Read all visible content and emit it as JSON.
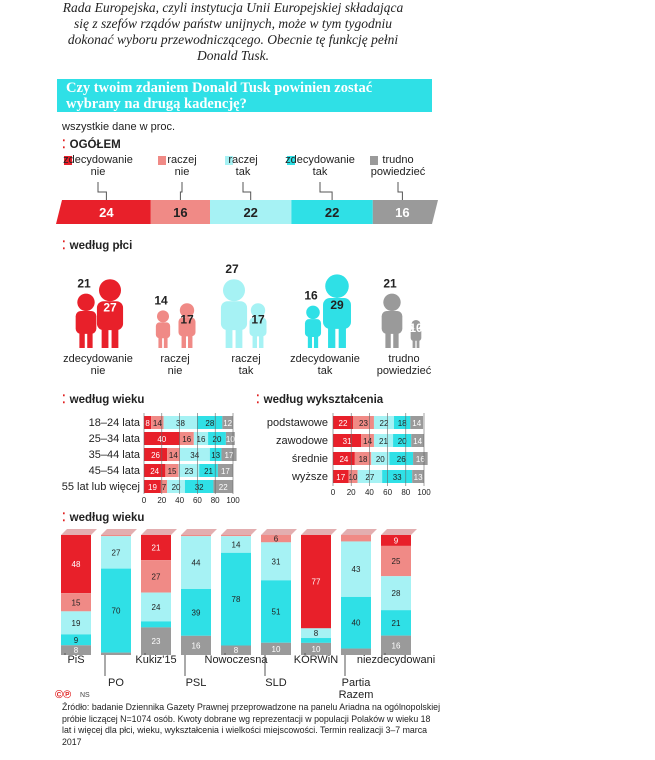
{
  "intro": "Rada Europejska, czyli instytucja Unii Europejskiej składająca się z szefów rządów państw unijnych, może w tym tygodniu dokonać wyboru przewodniczącego. Obecnie tę funkcję pełni Donald Tusk.",
  "question": "Czy twoim zdaniem Donald Tusk powinien zostać wybrany na drugą kadencję?",
  "units_note": "wszystkie dane w proc.",
  "colors": {
    "zdecydowanie_nie": "#e8202a",
    "raczej_nie": "#f08a86",
    "raczej_tak": "#a6f2f4",
    "zdecydowanie_tak": "#2fe0e6",
    "trudno": "#9a9a9a"
  },
  "categories": [
    "zdecydowanie nie",
    "raczej nie",
    "raczej tak",
    "zdecydowanie tak",
    "trudno powiedzieć"
  ],
  "chart_data": [
    {
      "id": "ogolem",
      "type": "bar",
      "title": "OGÓŁEM",
      "stacked": true,
      "categories": [
        "zdecydowanie nie",
        "raczej nie",
        "raczej tak",
        "zdecydowanie tak",
        "trudno powiedzieć"
      ],
      "values": [
        24,
        16,
        22,
        22,
        16
      ]
    },
    {
      "id": "plec",
      "type": "bar",
      "title": "według płci",
      "categories": [
        "zdecydowanie nie",
        "raczej nie",
        "raczej tak",
        "zdecydowanie tak",
        "trudno powiedzieć"
      ],
      "series": [
        {
          "values": [
            21,
            14,
            27,
            16,
            21
          ]
        },
        {
          "values": [
            27,
            17,
            17,
            29,
            10
          ]
        }
      ]
    },
    {
      "id": "wiek",
      "type": "bar",
      "title": "według wieku",
      "stacked": true,
      "orientation": "horizontal",
      "categories": [
        "18–24 lata",
        "25–34 lata",
        "35–44 lata",
        "45–54 lata",
        "55 lat lub więcej"
      ],
      "series": [
        {
          "name": "zdecydowanie nie",
          "values": [
            8,
            40,
            26,
            24,
            19
          ]
        },
        {
          "name": "raczej nie",
          "values": [
            14,
            16,
            14,
            15,
            7
          ]
        },
        {
          "name": "raczej tak",
          "values": [
            38,
            16,
            34,
            23,
            20
          ]
        },
        {
          "name": "zdecydowanie tak",
          "values": [
            28,
            20,
            13,
            21,
            32
          ]
        },
        {
          "name": "trudno powiedzieć",
          "values": [
            12,
            10,
            17,
            17,
            22
          ]
        }
      ],
      "xticks": [
        "0",
        "20",
        "40",
        "60",
        "80",
        "100"
      ],
      "xlim": [
        0,
        100
      ]
    },
    {
      "id": "wyksztalcenie",
      "type": "bar",
      "title": "według wykształcenia",
      "stacked": true,
      "orientation": "horizontal",
      "categories": [
        "podstawowe",
        "zawodowe",
        "średnie",
        "wyższe"
      ],
      "series": [
        {
          "name": "zdecydowanie nie",
          "values": [
            22,
            31,
            24,
            17
          ]
        },
        {
          "name": "raczej nie",
          "values": [
            23,
            14,
            18,
            10
          ]
        },
        {
          "name": "raczej tak",
          "values": [
            22,
            21,
            20,
            27
          ]
        },
        {
          "name": "zdecydowanie tak",
          "values": [
            18,
            20,
            26,
            33
          ]
        },
        {
          "name": "trudno powiedzieć",
          "values": [
            14,
            14,
            16,
            13
          ]
        }
      ],
      "xticks": [
        "0",
        "20",
        "40",
        "60",
        "80",
        "100"
      ],
      "xlim": [
        0,
        100
      ]
    },
    {
      "id": "partie",
      "type": "bar",
      "title": "według wieku",
      "stacked": true,
      "categories": [
        "PiS",
        "PO",
        "Kukiz'15",
        "PSL",
        "Nowoczesna",
        "SLD",
        "KORWiN",
        "Partia Razem",
        "niezdecydowani"
      ],
      "series": [
        {
          "name": "zdecydowanie nie",
          "values": [
            48,
            0,
            21,
            0,
            0,
            0,
            77,
            0,
            9
          ]
        },
        {
          "name": "raczej nie",
          "values": [
            15,
            1,
            27,
            1,
            1,
            6,
            0,
            5,
            25
          ]
        },
        {
          "name": "raczej tak",
          "values": [
            19,
            27,
            24,
            44,
            14,
            31,
            8,
            43,
            28
          ]
        },
        {
          "name": "zdecydowanie tak",
          "values": [
            9,
            70,
            5,
            39,
            78,
            51,
            4,
            40,
            21
          ]
        },
        {
          "name": "trudno powiedzieć",
          "values": [
            8,
            2,
            23,
            16,
            8,
            10,
            10,
            5,
            16
          ]
        }
      ]
    }
  ],
  "plec_labels": [
    "zdecydowanie\nnie",
    "raczej\nnie",
    "raczej\ntak",
    "zdecydowanie\ntak",
    "trudno\npowiedzieć"
  ],
  "source_logo": "NS",
  "footnote": "Źródło: badanie Dziennika Gazety Prawnej przeprowadzone na panelu Ariadna na ogólnopolskiej próbie liczącej N=1074 osób. Kwoty dobrane wg reprezentacji w populacji Polaków w wieku 18 lat i więcej dla płci, wieku, wykształcenia i wielkości miejscowości. Termin realizacji 3–7 marca 2017"
}
